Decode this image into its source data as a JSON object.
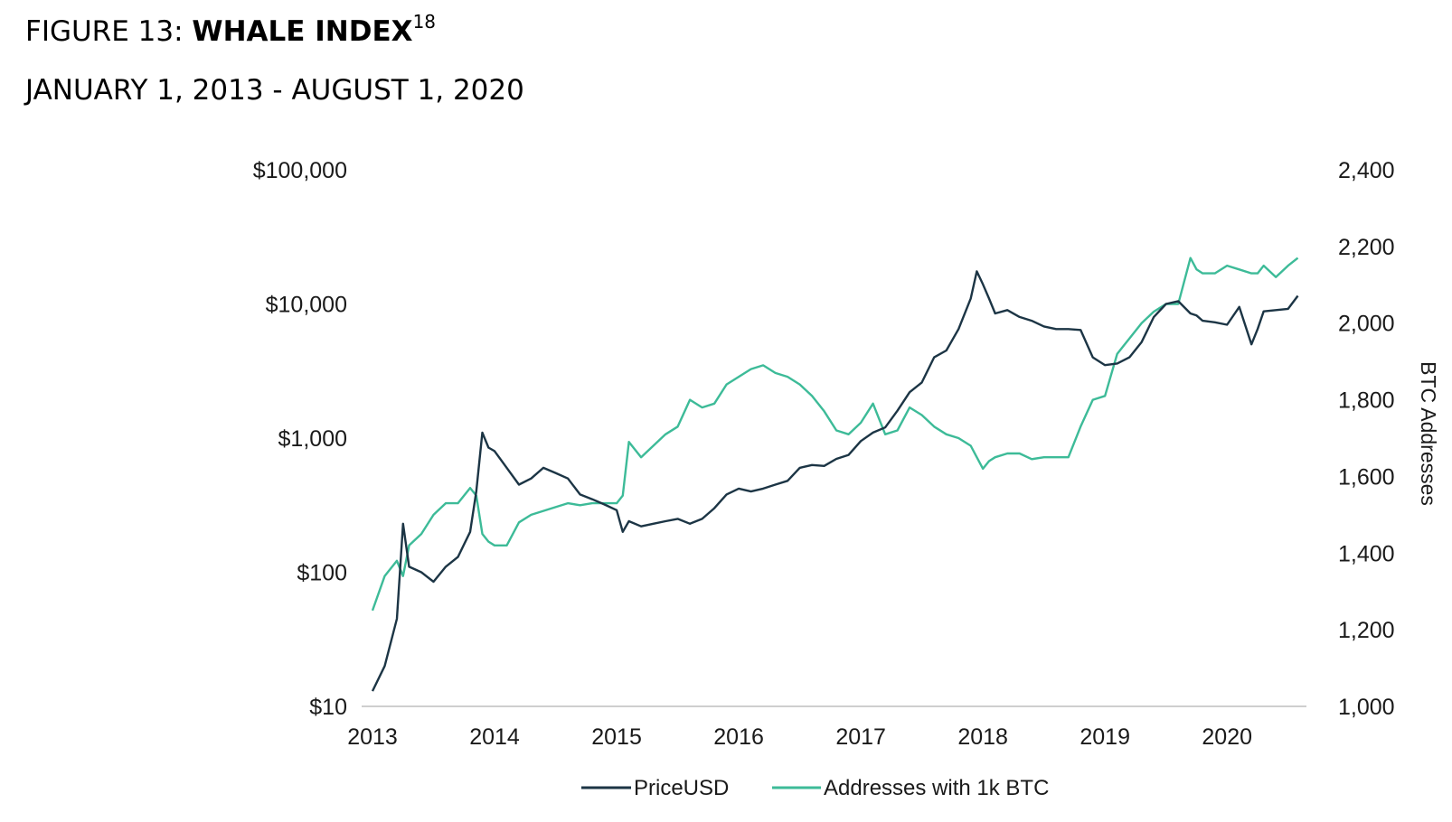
{
  "figure": {
    "label": "FIGURE 13: ",
    "title": "WHALE INDEX",
    "footnote": "18",
    "subtitle": "JANUARY 1, 2013 - AUGUST 1, 2020"
  },
  "colors": {
    "price": "#1c3545",
    "addresses": "#3dbb98",
    "axis": "#cfcfcf"
  },
  "chart_data": {
    "type": "line",
    "x": [
      2013.0,
      2013.1,
      2013.2,
      2013.25,
      2013.3,
      2013.4,
      2013.5,
      2013.6,
      2013.7,
      2013.8,
      2013.85,
      2013.9,
      2013.95,
      2014.0,
      2014.1,
      2014.2,
      2014.3,
      2014.4,
      2014.5,
      2014.6,
      2014.7,
      2014.8,
      2014.9,
      2015.0,
      2015.05,
      2015.1,
      2015.2,
      2015.3,
      2015.4,
      2015.5,
      2015.6,
      2015.7,
      2015.8,
      2015.9,
      2016.0,
      2016.1,
      2016.2,
      2016.3,
      2016.4,
      2016.5,
      2016.6,
      2016.7,
      2016.8,
      2016.9,
      2017.0,
      2017.1,
      2017.2,
      2017.3,
      2017.4,
      2017.5,
      2017.6,
      2017.7,
      2017.8,
      2017.9,
      2017.95,
      2018.0,
      2018.05,
      2018.1,
      2018.2,
      2018.3,
      2018.4,
      2018.5,
      2018.6,
      2018.7,
      2018.8,
      2018.9,
      2019.0,
      2019.1,
      2019.2,
      2019.3,
      2019.4,
      2019.5,
      2019.6,
      2019.7,
      2019.75,
      2019.8,
      2019.9,
      2020.0,
      2020.1,
      2020.2,
      2020.25,
      2020.3,
      2020.4,
      2020.5,
      2020.58
    ],
    "series": [
      {
        "name": "PriceUSD",
        "axis": "left",
        "values": [
          13,
          20,
          45,
          230,
          110,
          100,
          85,
          110,
          130,
          200,
          400,
          1100,
          850,
          800,
          600,
          450,
          500,
          600,
          550,
          500,
          380,
          350,
          320,
          290,
          200,
          240,
          220,
          230,
          240,
          250,
          230,
          250,
          300,
          380,
          420,
          400,
          420,
          450,
          480,
          600,
          630,
          620,
          700,
          750,
          950,
          1100,
          1200,
          1600,
          2200,
          2600,
          4000,
          4500,
          6500,
          11000,
          17500,
          14000,
          11000,
          8500,
          9000,
          8000,
          7500,
          6800,
          6500,
          6500,
          6400,
          4000,
          3500,
          3600,
          4000,
          5200,
          8000,
          10000,
          10500,
          8500,
          8200,
          7500,
          7300,
          7000,
          9500,
          5000,
          6500,
          8800,
          9000,
          9200,
          11500
        ]
      },
      {
        "name": "Addresses with 1k BTC",
        "axis": "right",
        "values": [
          1250,
          1340,
          1380,
          1340,
          1420,
          1450,
          1500,
          1530,
          1530,
          1570,
          1550,
          1450,
          1430,
          1420,
          1420,
          1480,
          1500,
          1510,
          1520,
          1530,
          1525,
          1530,
          1530,
          1530,
          1550,
          1690,
          1650,
          1680,
          1710,
          1730,
          1800,
          1780,
          1790,
          1840,
          1860,
          1880,
          1890,
          1870,
          1860,
          1840,
          1810,
          1770,
          1720,
          1710,
          1740,
          1790,
          1710,
          1720,
          1780,
          1760,
          1730,
          1710,
          1700,
          1680,
          1650,
          1620,
          1640,
          1650,
          1660,
          1660,
          1645,
          1650,
          1650,
          1650,
          1730,
          1800,
          1810,
          1920,
          1960,
          2000,
          2030,
          2050,
          2050,
          2170,
          2140,
          2130,
          2130,
          2150,
          2140,
          2130,
          2130,
          2150,
          2120,
          2150,
          2170
        ]
      }
    ],
    "x_ticks": [
      "2013",
      "2014",
      "2015",
      "2016",
      "2017",
      "2018",
      "2019",
      "2020"
    ],
    "x_range": [
      2013.0,
      2020.65
    ],
    "y_left": {
      "scale": "log",
      "range": [
        10,
        100000
      ],
      "ticks": [
        "$10",
        "$100",
        "$1,000",
        "$10,000",
        "$100,000"
      ]
    },
    "y_right": {
      "scale": "linear",
      "range": [
        1000,
        2400
      ],
      "ticks": [
        "1,000",
        "1,200",
        "1,400",
        "1,600",
        "1,800",
        "2,000",
        "2,200",
        "2,400"
      ],
      "label": "BTC Addresses"
    },
    "legend": [
      "PriceUSD",
      "Addresses with 1k BTC"
    ],
    "legend_position": "bottom",
    "grid": false
  }
}
